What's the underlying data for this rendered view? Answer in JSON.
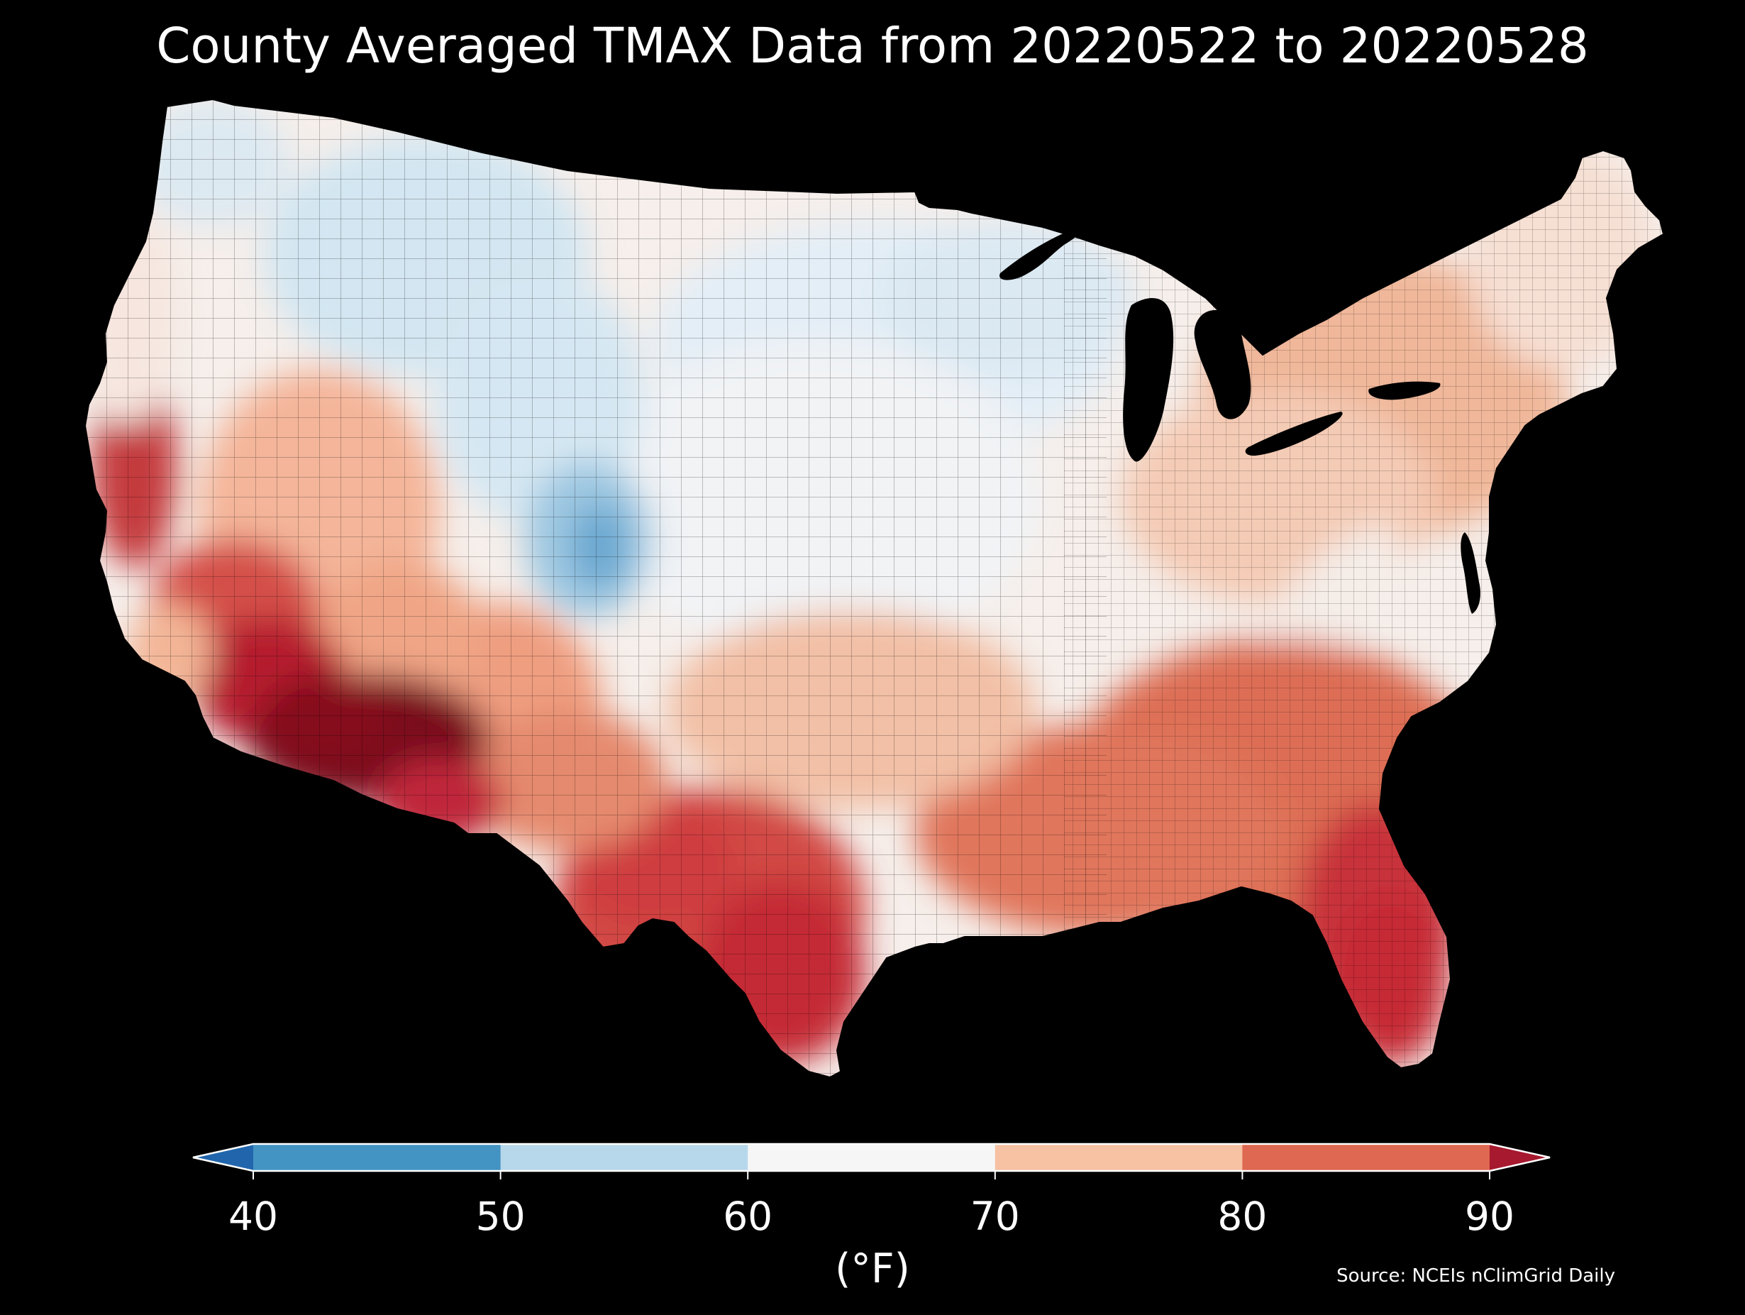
{
  "title": "County Averaged TMAX Data from 20220522 to 20220528",
  "colorbar": {
    "unit_label": "(°F)",
    "ticks": [
      "40",
      "50",
      "60",
      "70",
      "80",
      "90"
    ],
    "bins": [
      {
        "range": "<40",
        "color": "#2166ac"
      },
      {
        "range": "40-50",
        "color": "#4393c3"
      },
      {
        "range": "50-60",
        "color": "#b7d8eb"
      },
      {
        "range": "60-70",
        "color": "#f6f6f6"
      },
      {
        "range": "70-80",
        "color": "#f7c1a3"
      },
      {
        "range": "80-90",
        "color": "#de6851"
      },
      {
        "range": ">90",
        "color": "#a6192e"
      }
    ],
    "extend": "both"
  },
  "source": "Source: NCEIs nClimGrid Daily",
  "map": {
    "region": "Contiguous United States",
    "variable": "TMAX",
    "projection": "conic",
    "regional_pattern": [
      {
        "area": "Desert Southwest (southern Arizona)",
        "bin": ">90"
      },
      {
        "area": "Southern California / Central Valley / southern Nevada",
        "bin": "80-90"
      },
      {
        "area": "South Texas",
        "bin": "80-90"
      },
      {
        "area": "Florida peninsula",
        "bin": "80-90"
      },
      {
        "area": "Southeast (Georgia, Carolinas, Gulf Coast)",
        "bin": "80-90"
      },
      {
        "area": "Mid-Atlantic and Ohio Valley",
        "bin": "70-80"
      },
      {
        "area": "Northeast and New England",
        "bin": "70-80"
      },
      {
        "area": "Pacific Northwest coast",
        "bin": "60-70"
      },
      {
        "area": "Northern Rockies (Montana, Wyoming, Idaho)",
        "bin": "50-60"
      },
      {
        "area": "Colorado Rockies",
        "bin": "40-50"
      },
      {
        "area": "Upper Midwest and Great Lakes",
        "bin": "50-60"
      },
      {
        "area": "Central Plains",
        "bin": "60-70"
      },
      {
        "area": "Appalachian ridge",
        "bin": "60-70"
      }
    ]
  }
}
